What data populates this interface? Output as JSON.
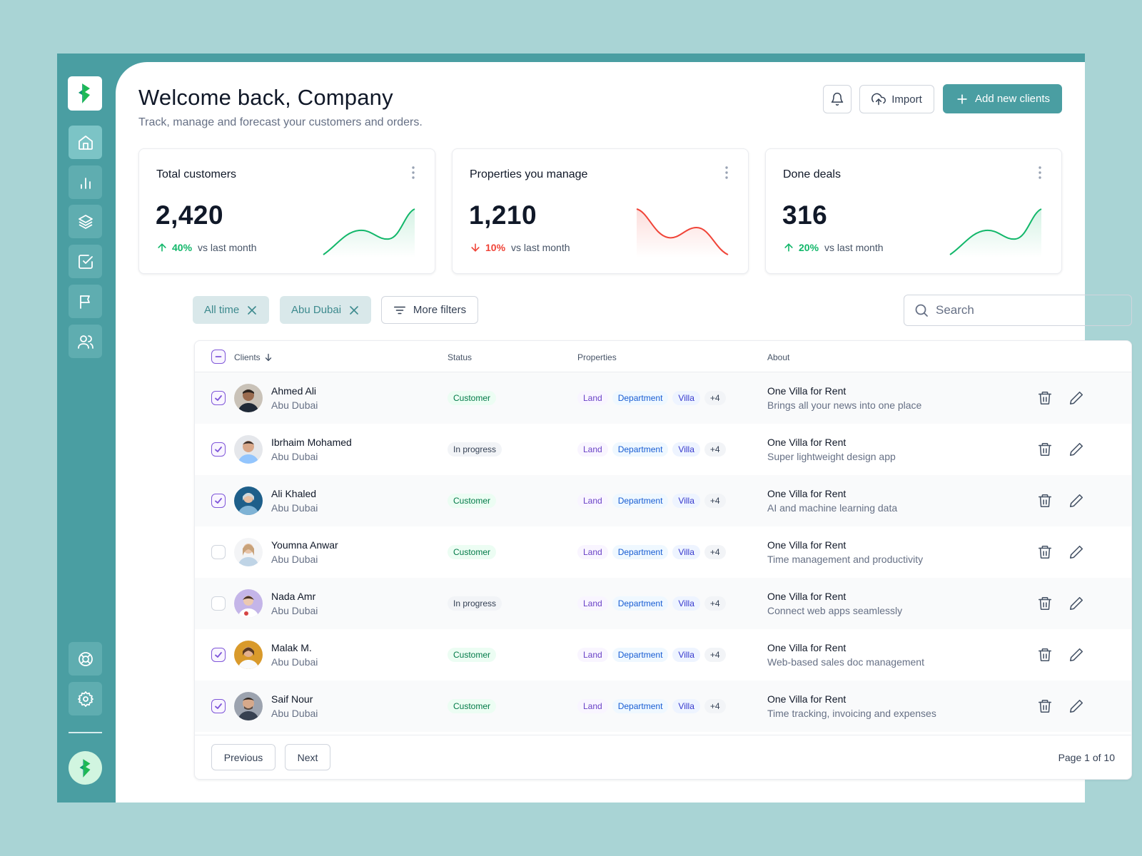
{
  "header": {
    "title": "Welcome back, Company",
    "subtitle": "Track, manage and forecast your customers and orders.",
    "import_label": "Import",
    "add_label": "Add new clients"
  },
  "sidebar": {
    "items": [
      {
        "name": "home-icon",
        "active": true
      },
      {
        "name": "bar-chart-icon",
        "active": false
      },
      {
        "name": "layers-icon",
        "active": false
      },
      {
        "name": "check-square-icon",
        "active": false
      },
      {
        "name": "flag-icon",
        "active": false
      },
      {
        "name": "users-icon",
        "active": false
      }
    ],
    "bottom": [
      {
        "name": "support-icon"
      },
      {
        "name": "settings-icon"
      }
    ]
  },
  "stats": [
    {
      "title": "Total customers",
      "value": "2,420",
      "change": "40%",
      "direction": "up",
      "vs": "vs last month",
      "color": "#12b76a"
    },
    {
      "title": "Properties you manage",
      "value": "1,210",
      "change": "10%",
      "direction": "down",
      "vs": "vs last month",
      "color": "#f04438"
    },
    {
      "title": "Done deals",
      "value": "316",
      "change": "20%",
      "direction": "up",
      "vs": "vs last month",
      "color": "#12b76a"
    }
  ],
  "filters": {
    "chips": [
      "All time",
      "Abu Dubai"
    ],
    "more_label": "More filters",
    "search_placeholder": "Search"
  },
  "table": {
    "columns": [
      "Clients",
      "Status",
      "Properties",
      "About"
    ],
    "tags": [
      "Land",
      "Department",
      "Villa",
      "+4"
    ],
    "rows": [
      {
        "name": "Ahmed Ali",
        "location": "Abu Dubai",
        "status": "Customer",
        "about_title": "One Villa for Rent",
        "about_desc": "Brings all your news into one place",
        "checked": true
      },
      {
        "name": "Ibrhaim Mohamed",
        "location": "Abu Dubai",
        "status": "In progress",
        "about_title": "One Villa for Rent",
        "about_desc": "Super lightweight design app",
        "checked": true
      },
      {
        "name": "Ali Khaled",
        "location": "Abu Dubai",
        "status": "Customer",
        "about_title": "One Villa for Rent",
        "about_desc": "AI and machine learning data",
        "checked": true
      },
      {
        "name": "Youmna Anwar",
        "location": "Abu Dubai",
        "status": "Customer",
        "about_title": "One Villa for Rent",
        "about_desc": "Time management and productivity",
        "checked": false
      },
      {
        "name": "Nada Amr",
        "location": "Abu Dubai",
        "status": "In progress",
        "about_title": "One Villa for Rent",
        "about_desc": "Connect web apps seamlessly",
        "checked": false
      },
      {
        "name": "Malak M.",
        "location": "Abu Dubai",
        "status": "Customer",
        "about_title": "One Villa for Rent",
        "about_desc": "Web-based sales doc management",
        "checked": true
      },
      {
        "name": "Saif Nour",
        "location": "Abu Dubai",
        "status": "Customer",
        "about_title": "One Villa for Rent",
        "about_desc": "Time tracking, invoicing and expenses",
        "checked": true
      }
    ]
  },
  "pagination": {
    "previous_label": "Previous",
    "next_label": "Next",
    "page_prefix": "Page",
    "current": "1",
    "of_label": "of",
    "total": "10"
  },
  "colors": {
    "accent": "#4a9ea2",
    "background": "#a9d4d5",
    "checkbox": "#7f56d9"
  }
}
